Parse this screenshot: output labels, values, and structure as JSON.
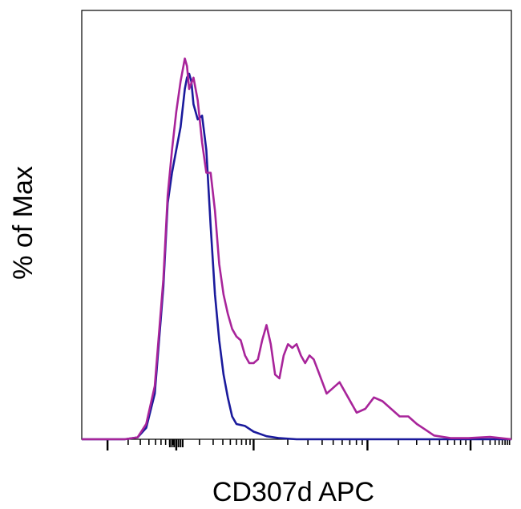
{
  "chart_data": {
    "type": "line",
    "title": "",
    "xlabel": "CD307d APC",
    "ylabel": "% of Max",
    "x_scale": "log (flow cytometry biexponential)",
    "xlim": [
      0,
      1
    ],
    "ylim": [
      0,
      100
    ],
    "x_tick_labels": [],
    "y_tick_labels": [],
    "grid": false,
    "legend": "none",
    "series": [
      {
        "color": "#1a1a9c",
        "x": [
          0.0,
          0.1,
          0.13,
          0.15,
          0.17,
          0.19,
          0.2,
          0.21,
          0.22,
          0.23,
          0.24,
          0.245,
          0.25,
          0.255,
          0.26,
          0.27,
          0.28,
          0.29,
          0.3,
          0.31,
          0.32,
          0.33,
          0.34,
          0.35,
          0.36,
          0.38,
          0.4,
          0.43,
          0.46,
          0.5,
          0.6,
          0.8,
          1.0
        ],
        "y": [
          0,
          0,
          0.5,
          3,
          12,
          40,
          62,
          70,
          76,
          82,
          92,
          95,
          96,
          94,
          88,
          84,
          85,
          76,
          56,
          38,
          26,
          17,
          11,
          6,
          4,
          3.5,
          2,
          0.8,
          0.3,
          0,
          0,
          0,
          0
        ]
      },
      {
        "color": "#a8249a",
        "x": [
          0.0,
          0.1,
          0.13,
          0.15,
          0.17,
          0.19,
          0.2,
          0.21,
          0.22,
          0.23,
          0.24,
          0.245,
          0.25,
          0.26,
          0.27,
          0.28,
          0.29,
          0.3,
          0.31,
          0.32,
          0.33,
          0.34,
          0.35,
          0.36,
          0.37,
          0.38,
          0.39,
          0.4,
          0.41,
          0.42,
          0.43,
          0.44,
          0.45,
          0.46,
          0.47,
          0.48,
          0.49,
          0.5,
          0.51,
          0.52,
          0.53,
          0.54,
          0.55,
          0.56,
          0.57,
          0.58,
          0.6,
          0.62,
          0.64,
          0.66,
          0.68,
          0.7,
          0.72,
          0.74,
          0.76,
          0.78,
          0.8,
          0.82,
          0.86,
          0.9,
          0.95,
          1.0
        ],
        "y": [
          0,
          0,
          0.5,
          4,
          14,
          42,
          64,
          76,
          86,
          94,
          100,
          98,
          92,
          95,
          89,
          78,
          70,
          70,
          60,
          46,
          38,
          33,
          29,
          27,
          26,
          22,
          20,
          20,
          21,
          26,
          30,
          25,
          17,
          16,
          22,
          25,
          24,
          25,
          22,
          20,
          22,
          21,
          18,
          15,
          12,
          13,
          15,
          11,
          7,
          8,
          11,
          10,
          8,
          6,
          6,
          4,
          2.5,
          1,
          0.3,
          0.3,
          0.6,
          0
        ]
      }
    ]
  }
}
